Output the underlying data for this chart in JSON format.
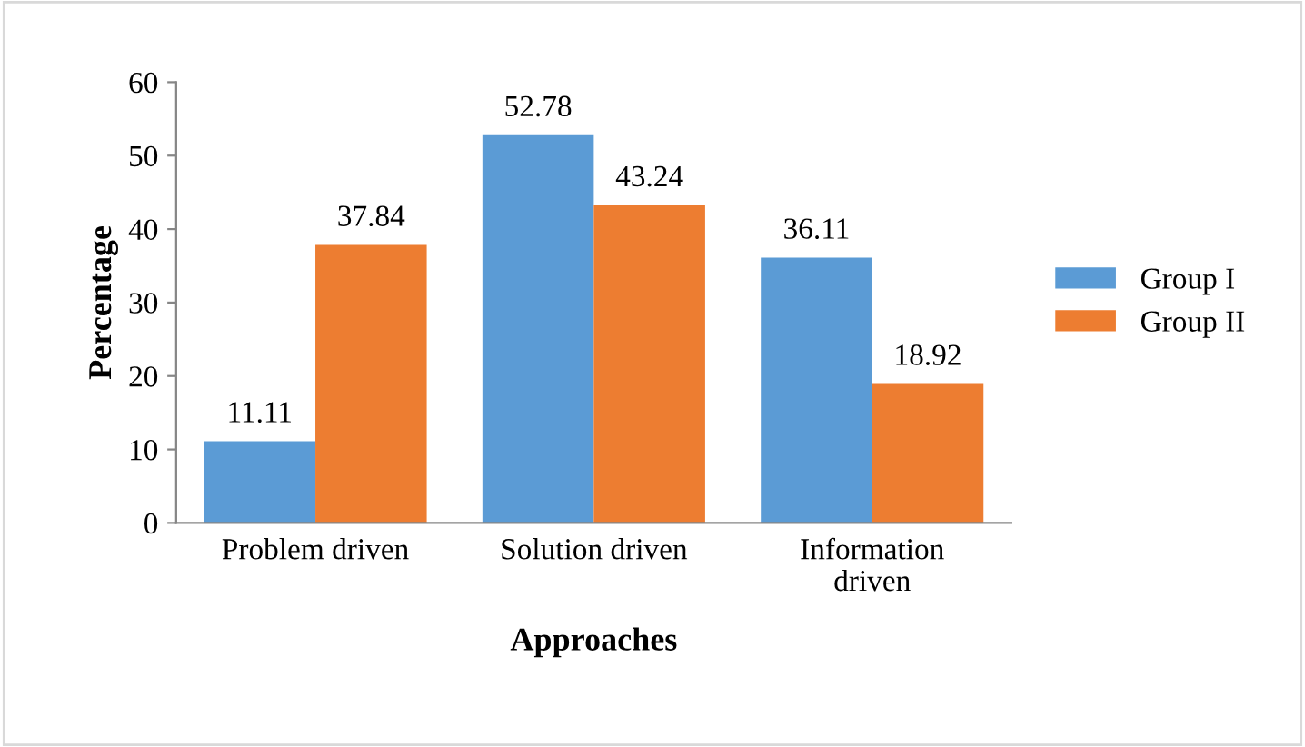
{
  "chart_data": {
    "type": "bar",
    "xlabel": "Approaches",
    "ylabel": "Percentage",
    "categories": [
      "Problem driven",
      "Solution driven",
      "Information\ndriven"
    ],
    "series": [
      {
        "name": "Group I",
        "color": "#5b9bd5",
        "values": [
          11.11,
          52.78,
          36.11
        ]
      },
      {
        "name": "Group II",
        "color": "#ed7d31",
        "values": [
          37.84,
          43.24,
          18.92
        ]
      }
    ],
    "ylim": [
      0,
      60
    ],
    "yticks": [
      0,
      10,
      20,
      30,
      40,
      50,
      60
    ],
    "grid": false,
    "legend": "right",
    "data_labels": true
  }
}
